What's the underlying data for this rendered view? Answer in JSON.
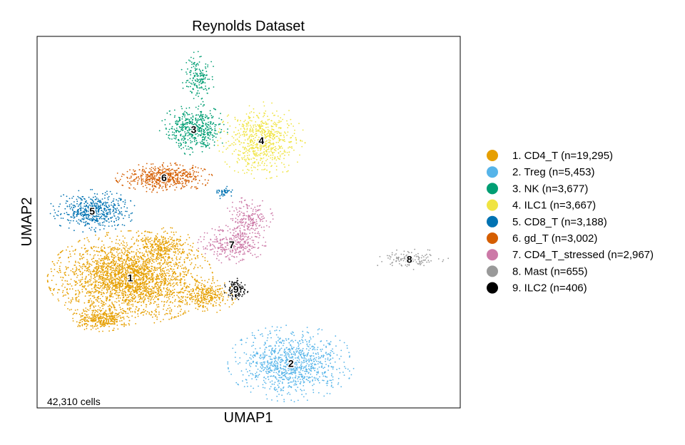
{
  "chart_data": {
    "type": "scatter",
    "title": "Reynolds Dataset",
    "xlabel": "UMAP1",
    "ylabel": "UMAP2",
    "cell_count_label": "42,310 cells",
    "legend_position": "right",
    "grid": false,
    "series": [
      {
        "id": "1",
        "name": "1. CD4_T (n=19,295)",
        "count": 19295,
        "color": "#E69F00",
        "blobs": [
          {
            "cx": 0.22,
            "cy": 0.35,
            "rx": 0.17,
            "ry": 0.11,
            "w": 0.75
          },
          {
            "cx": 0.15,
            "cy": 0.24,
            "rx": 0.06,
            "ry": 0.03,
            "w": 0.1
          },
          {
            "cx": 0.4,
            "cy": 0.3,
            "rx": 0.06,
            "ry": 0.04,
            "w": 0.08
          },
          {
            "cx": 0.3,
            "cy": 0.44,
            "rx": 0.06,
            "ry": 0.04,
            "w": 0.07
          }
        ]
      },
      {
        "id": "2",
        "name": "2. Treg (n=5,453)",
        "count": 5453,
        "color": "#56B4E9",
        "blobs": [
          {
            "cx": 0.6,
            "cy": 0.12,
            "rx": 0.13,
            "ry": 0.09,
            "w": 1.0
          }
        ]
      },
      {
        "id": "3",
        "name": "3. NK (n=3,677)",
        "count": 3677,
        "color": "#009E73",
        "blobs": [
          {
            "cx": 0.37,
            "cy": 0.75,
            "rx": 0.07,
            "ry": 0.06,
            "w": 0.75
          },
          {
            "cx": 0.38,
            "cy": 0.89,
            "rx": 0.035,
            "ry": 0.06,
            "w": 0.25
          }
        ]
      },
      {
        "id": "4",
        "name": "4. ILC1 (n=3,667)",
        "count": 3667,
        "color": "#F0E442",
        "blobs": [
          {
            "cx": 0.53,
            "cy": 0.72,
            "rx": 0.09,
            "ry": 0.09,
            "w": 1.0
          }
        ]
      },
      {
        "id": "5",
        "name": "5. CD8_T (n=3,188)",
        "count": 3188,
        "color": "#0072B2",
        "blobs": [
          {
            "cx": 0.13,
            "cy": 0.53,
            "rx": 0.09,
            "ry": 0.05,
            "w": 0.92
          },
          {
            "cx": 0.44,
            "cy": 0.58,
            "rx": 0.02,
            "ry": 0.015,
            "w": 0.08
          }
        ]
      },
      {
        "id": "6",
        "name": "6. gd_T (n=3,002)",
        "count": 3002,
        "color": "#D55E00",
        "blobs": [
          {
            "cx": 0.3,
            "cy": 0.62,
            "rx": 0.1,
            "ry": 0.035,
            "w": 1.0
          }
        ]
      },
      {
        "id": "7",
        "name": "7. CD4_T_stressed (n=2,967)",
        "count": 2967,
        "color": "#CC79A7",
        "blobs": [
          {
            "cx": 0.46,
            "cy": 0.44,
            "rx": 0.07,
            "ry": 0.045,
            "w": 0.6
          },
          {
            "cx": 0.5,
            "cy": 0.51,
            "rx": 0.05,
            "ry": 0.05,
            "w": 0.4
          }
        ]
      },
      {
        "id": "8",
        "name": "8. Mast (n=655)",
        "count": 655,
        "color": "#999999",
        "blobs": [
          {
            "cx": 0.88,
            "cy": 0.4,
            "rx": 0.08,
            "ry": 0.025,
            "w": 1.0
          }
        ]
      },
      {
        "id": "9",
        "name": "9. ILC2 (n=406)",
        "count": 406,
        "color": "#000000",
        "blobs": [
          {
            "cx": 0.47,
            "cy": 0.32,
            "rx": 0.025,
            "ry": 0.025,
            "w": 1.0
          }
        ]
      }
    ]
  }
}
